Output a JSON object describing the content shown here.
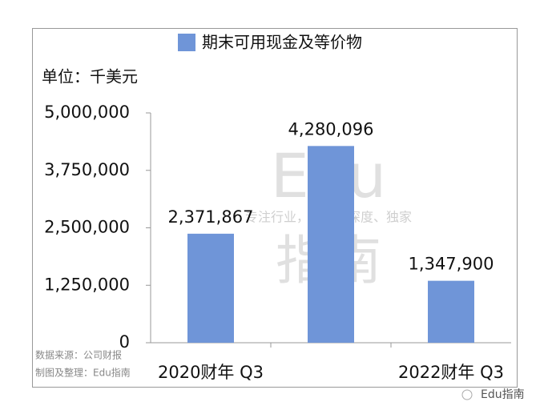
{
  "chart_data": {
    "type": "bar",
    "title": "单位：千美元",
    "categories": [
      "2020财年 Q3",
      null,
      "2022财年 Q3"
    ],
    "series": [
      {
        "name": "期末可用现金及等价物",
        "color": "#6f95d8",
        "values": [
          2371867,
          4280096,
          1347900
        ],
        "value_labels": [
          "2,371,867",
          "4,280,096",
          "1,347,900"
        ]
      }
    ],
    "ylim": [
      0,
      5000000
    ],
    "yticks": [
      0,
      {
        "value": 1250000,
        "label": "1,250,000"
      },
      {
        "value": 2500000,
        "label": "2,500,000"
      },
      {
        "value": 3750000,
        "label": "3,750,000"
      },
      {
        "value": 5000000,
        "label": "5,000,000"
      }
    ],
    "legend": "top",
    "notes": [
      "数据来源：公司财报",
      "制图及整理：Edu指南"
    ],
    "watermark": [
      "Edu",
      "指南",
      "专注行业，前沿、深度、独家"
    ],
    "brand": "Edu指南"
  }
}
